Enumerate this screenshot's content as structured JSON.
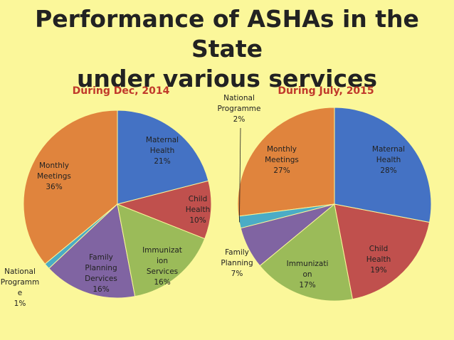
{
  "page": {
    "title_line1": "Performance of ASHAs in the State",
    "title_line2": "under various services"
  },
  "chart_data": [
    {
      "type": "pie",
      "title": "During Dec, 2014",
      "slices": [
        {
          "label": "Maternal Health",
          "value": 21,
          "label_text": [
            "Maternal",
            "Health",
            "21%"
          ],
          "color": "#4472c4"
        },
        {
          "label": "Child Health",
          "value": 10,
          "label_text": [
            "Child",
            "Health",
            "10%"
          ],
          "color": "#c0504d"
        },
        {
          "label": "Immunization Services",
          "value": 16,
          "label_text": [
            "Immunizat",
            "ion",
            "Services",
            "16%"
          ],
          "color": "#9bbb59"
        },
        {
          "label": "Family Planning Dervices",
          "value": 16,
          "label_text": [
            "Family",
            "Planning",
            "Dervices",
            "16%"
          ],
          "color": "#8064a2"
        },
        {
          "label": "National Programme",
          "value": 1,
          "label_text": [
            "National",
            "Programm",
            "e",
            "1%"
          ],
          "color": "#4bacc6"
        },
        {
          "label": "Monthly Meetings",
          "value": 36,
          "label_text": [
            "Monthly",
            "Meetings",
            "36%"
          ],
          "color": "#e0843d"
        }
      ]
    },
    {
      "type": "pie",
      "title": "During July, 2015",
      "slices": [
        {
          "label": "Maternal Health",
          "value": 28,
          "label_text": [
            "Maternal",
            "Health",
            "28%"
          ],
          "color": "#4472c4"
        },
        {
          "label": "Child Health",
          "value": 19,
          "label_text": [
            "Child",
            "Health",
            "19%"
          ],
          "color": "#c0504d"
        },
        {
          "label": "Immunization",
          "value": 17,
          "label_text": [
            "Immunizati",
            "on",
            "17%"
          ],
          "color": "#9bbb59"
        },
        {
          "label": "Family Planning",
          "value": 7,
          "label_text": [
            "Family",
            "Planning",
            "7%"
          ],
          "color": "#8064a2"
        },
        {
          "label": "National Programme",
          "value": 2,
          "label_text": [
            "National",
            "Programme",
            "2%"
          ],
          "color": "#4bacc6"
        },
        {
          "label": "Monthly Meetings",
          "value": 27,
          "label_text": [
            "Monthly",
            "Meetings",
            "27%"
          ],
          "color": "#e0843d"
        }
      ]
    }
  ]
}
